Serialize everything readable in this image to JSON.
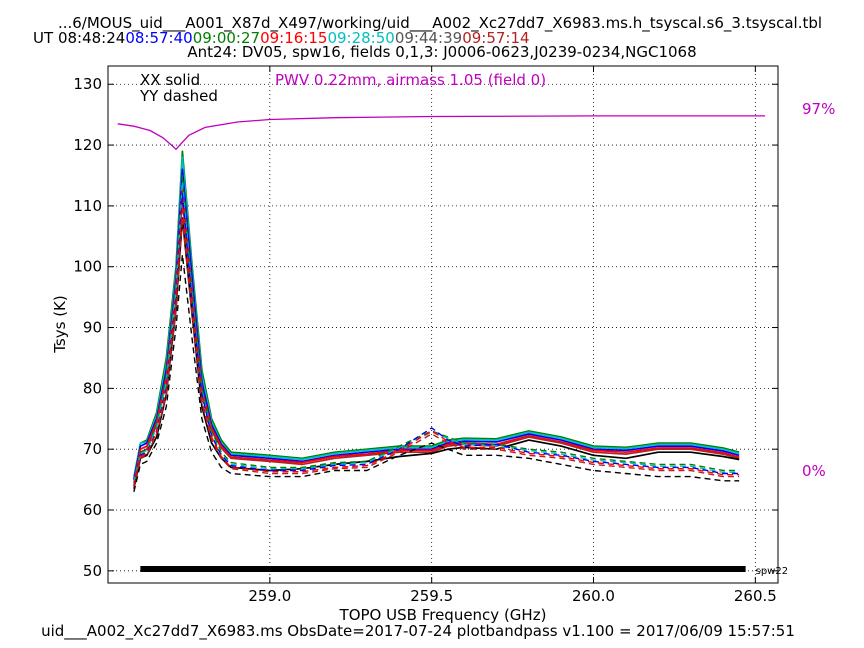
{
  "header": {
    "title": "...6/MOUS_uid___A001_X87d_X497/working/uid___A002_Xc27dd7_X6983.ms.h_tsyscal.s6_3.tsyscal.tbl",
    "ut_label": "UT",
    "ut_times": [
      {
        "text": "08:48:24",
        "color": "#000000"
      },
      {
        "text": "08:57:40",
        "color": "#0000ff"
      },
      {
        "text": "09:00:27",
        "color": "#008000"
      },
      {
        "text": "09:16:15",
        "color": "#ff0000"
      },
      {
        "text": "09:28:50",
        "color": "#00bfbf"
      },
      {
        "text": "09:44:39",
        "color": "#555555"
      },
      {
        "text": "09:57:14",
        "color": "#b22222"
      }
    ],
    "subtitle": "Ant24: DV05,  spw16,  fields 0,1,3: J0006-0623,J0239-0234,NGC1068"
  },
  "footer": {
    "text": "uid___A002_Xc27dd7_X6983.ms  ObsDate=2017-07-24   plotbandpass v1.100 = 2017/06/09 15:57:51"
  },
  "colors": {
    "axis": "#000000",
    "grid": "#000000",
    "pwv": "#bf00bf",
    "spw_bar": "#000000"
  },
  "chart_data": {
    "type": "line",
    "xlabel": "TOPO USB Frequency (GHz)",
    "ylabel": "Tsys (K)",
    "xlim": [
      258.5,
      260.57
    ],
    "ylim": [
      48,
      133
    ],
    "xticks": [
      259.0,
      259.5,
      260.0,
      260.5
    ],
    "xtick_labels": [
      "259.0",
      "259.5",
      "260.0",
      "260.5"
    ],
    "yticks": [
      50,
      60,
      70,
      80,
      90,
      100,
      110,
      120,
      130
    ],
    "ytick_labels": [
      "50",
      "60",
      "70",
      "80",
      "90",
      "100",
      "110",
      "120",
      "130"
    ],
    "grid": true,
    "legend": {
      "placement": "top-left",
      "lines": [
        "XX solid",
        "YY dashed"
      ]
    },
    "annotation": {
      "text": "PWV 0.22mm, airmass 1.05 (field 0)",
      "color": "#bf00bf"
    },
    "right_axis_labels": [
      {
        "text": "97%",
        "color": "#bf00bf"
      },
      {
        "text": "0%",
        "color": "#bf00bf"
      }
    ],
    "spw_bar": {
      "label": "spw22",
      "x_range": [
        258.6,
        260.47
      ],
      "y": 50.3
    },
    "freq": [
      258.58,
      258.6,
      258.62,
      258.65,
      258.68,
      258.71,
      258.73,
      258.76,
      258.79,
      258.82,
      258.85,
      258.88,
      259.0,
      259.1,
      259.2,
      259.3,
      259.4,
      259.5,
      259.55,
      259.6,
      259.7,
      259.8,
      259.9,
      260.0,
      260.1,
      260.2,
      260.3,
      260.4,
      260.45
    ],
    "series": [
      {
        "pol": "XX",
        "color": "#008000",
        "dashed": false,
        "values": [
          65,
          71,
          71.5,
          76,
          85,
          100,
          119,
          100,
          83,
          75,
          71.5,
          69.5,
          69,
          68.5,
          69.5,
          70,
          70.5,
          70.5,
          71.5,
          71.8,
          71.7,
          73,
          72,
          70.5,
          70.3,
          71,
          71,
          70.2,
          69.5
        ]
      },
      {
        "pol": "XX",
        "color": "#00bfbf",
        "dashed": false,
        "values": [
          65.5,
          71,
          71.2,
          75.5,
          84,
          99,
          118,
          99,
          82,
          74.5,
          71,
          69.2,
          68.8,
          68.3,
          69.3,
          69.8,
          70.3,
          70.3,
          71.3,
          71.6,
          71.5,
          72.8,
          71.8,
          70.3,
          70.1,
          70.8,
          70.8,
          70,
          69.3
        ]
      },
      {
        "pol": "XX",
        "color": "#0000ff",
        "dashed": false,
        "values": [
          65,
          70.5,
          71,
          75,
          83,
          98,
          116,
          98,
          81,
          74,
          70.8,
          69,
          68.5,
          68,
          69,
          69.5,
          70,
          70,
          71,
          71.3,
          71.2,
          72.5,
          71.5,
          70,
          69.8,
          70.5,
          70.5,
          69.7,
          69
        ]
      },
      {
        "pol": "XX",
        "color": "#ff0000",
        "dashed": false,
        "values": [
          64.5,
          70,
          70.5,
          74.5,
          82,
          97,
          113,
          96,
          80,
          73.5,
          70.5,
          68.7,
          68.2,
          67.8,
          68.8,
          69.2,
          69.8,
          69.8,
          70.8,
          71,
          70.8,
          72.2,
          71.2,
          69.8,
          69.5,
          70.2,
          70.2,
          69.4,
          68.7
        ]
      },
      {
        "pol": "XX",
        "color": "#b22222",
        "dashed": false,
        "values": [
          64,
          69.5,
          70,
          74,
          81,
          96,
          111,
          95,
          79,
          73,
          70.2,
          68.5,
          68,
          67.5,
          68.5,
          69,
          69.5,
          69.5,
          70.5,
          70.8,
          70.5,
          72,
          71,
          69.5,
          69.2,
          70,
          70,
          69.2,
          68.5
        ]
      },
      {
        "pol": "XX",
        "color": "#000000",
        "dashed": false,
        "values": [
          63.5,
          68.5,
          69,
          72,
          79,
          93,
          108,
          92,
          77,
          71,
          68.5,
          67,
          66.5,
          66.8,
          67.5,
          68,
          68.8,
          69.3,
          70,
          70.3,
          70,
          71.5,
          70.5,
          69,
          68.5,
          69.5,
          69.5,
          68.8,
          68.3
        ]
      },
      {
        "pol": "YY",
        "color": "#008000",
        "dashed": true,
        "values": [
          64.5,
          69.5,
          70,
          74,
          82,
          97,
          115,
          96,
          80,
          73,
          69.5,
          67.8,
          67,
          67,
          67.8,
          68,
          70.5,
          73,
          72,
          71,
          70.8,
          70,
          69.5,
          68.5,
          68,
          67.5,
          67.5,
          66.5,
          66.5
        ]
      },
      {
        "pol": "YY",
        "color": "#00bfbf",
        "dashed": true,
        "values": [
          64.5,
          69.2,
          69.8,
          73.5,
          81,
          96,
          114,
          95,
          79.5,
          72.5,
          69.2,
          67.5,
          66.8,
          66.8,
          67.5,
          67.8,
          70.2,
          72.8,
          71.8,
          70.8,
          70.5,
          69.8,
          69.2,
          68.2,
          67.8,
          67.2,
          67.2,
          66.2,
          66.2
        ]
      },
      {
        "pol": "YY",
        "color": "#0000ff",
        "dashed": true,
        "values": [
          64,
          69,
          69.5,
          73,
          80,
          95,
          112,
          94,
          79,
          72.2,
          69,
          67.3,
          66.5,
          66.5,
          67.3,
          67.5,
          70,
          73.5,
          71.5,
          70.5,
          70.8,
          69.5,
          69,
          68,
          67.5,
          67,
          67,
          66,
          66
        ]
      },
      {
        "pol": "YY",
        "color": "#ff0000",
        "dashed": true,
        "values": [
          64,
          68.8,
          69.3,
          72.8,
          79.5,
          94,
          110,
          93,
          78,
          72,
          68.8,
          67,
          66.3,
          66.3,
          67,
          67.3,
          69.8,
          73,
          71.3,
          70.3,
          70.3,
          69.3,
          68.8,
          67.8,
          67.3,
          66.8,
          66.8,
          65.8,
          65.8
        ]
      },
      {
        "pol": "YY",
        "color": "#b22222",
        "dashed": true,
        "values": [
          63.5,
          68.5,
          69,
          72.5,
          79,
          93,
          108,
          92,
          77.5,
          71.5,
          68.5,
          66.8,
          66,
          66,
          66.8,
          67,
          69.5,
          72.5,
          71,
          70,
          70,
          69,
          68.5,
          67.5,
          67,
          66.5,
          66.5,
          65.5,
          65.5
        ]
      },
      {
        "pol": "YY",
        "color": "#000000",
        "dashed": true,
        "values": [
          63,
          67.5,
          68,
          71,
          77,
          90,
          102,
          88,
          75,
          69.5,
          67,
          66,
          65.5,
          65.5,
          66.5,
          66.5,
          69,
          71,
          70,
          69,
          69,
          68.5,
          67.5,
          66.5,
          66,
          65.5,
          65.5,
          64.8,
          64.8
        ]
      }
    ],
    "pwv_curve": {
      "color": "#bf00bf",
      "freq": [
        258.53,
        258.58,
        258.63,
        258.67,
        258.7,
        258.71,
        258.72,
        258.75,
        258.8,
        258.9,
        259.0,
        259.2,
        259.5,
        260.0,
        260.53
      ],
      "values": [
        123.5,
        123.1,
        122.4,
        121.2,
        119.8,
        119.3,
        119.9,
        121.6,
        122.9,
        123.8,
        124.2,
        124.5,
        124.7,
        124.8,
        124.8
      ]
    }
  }
}
